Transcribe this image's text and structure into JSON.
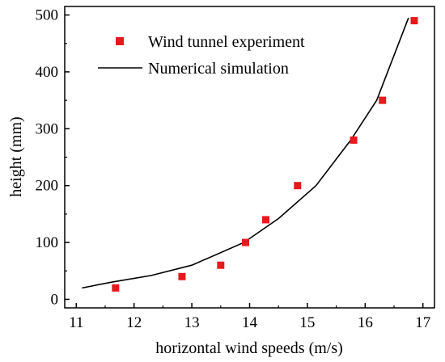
{
  "chart_data": {
    "type": "scatter",
    "xlabel": "horizontal wind speeds (m/s)",
    "ylabel": "height (mm)",
    "xlim": [
      10.8,
      17.2
    ],
    "ylim": [
      -15,
      515
    ],
    "x_ticks": [
      11,
      12,
      13,
      14,
      15,
      16,
      17
    ],
    "y_ticks": [
      0,
      100,
      200,
      300,
      400,
      500
    ],
    "grid": false,
    "legend_position": "top-left",
    "series": [
      {
        "name": "Wind tunnel experiment",
        "kind": "scatter",
        "marker": "square",
        "color": "#e41a1c",
        "x": [
          11.68,
          12.83,
          13.5,
          13.93,
          14.28,
          14.83,
          15.8,
          16.3,
          16.85
        ],
        "y": [
          20,
          40,
          60,
          100,
          140,
          200,
          280,
          350,
          490
        ]
      },
      {
        "name": "Numerical simulation",
        "kind": "line",
        "color": "#000000",
        "x": [
          11.1,
          11.6,
          12.3,
          13.0,
          13.9,
          14.5,
          15.15,
          15.75,
          16.2,
          16.75
        ],
        "y": [
          20,
          30,
          42,
          60,
          100,
          142,
          200,
          280,
          350,
          495
        ]
      }
    ]
  }
}
